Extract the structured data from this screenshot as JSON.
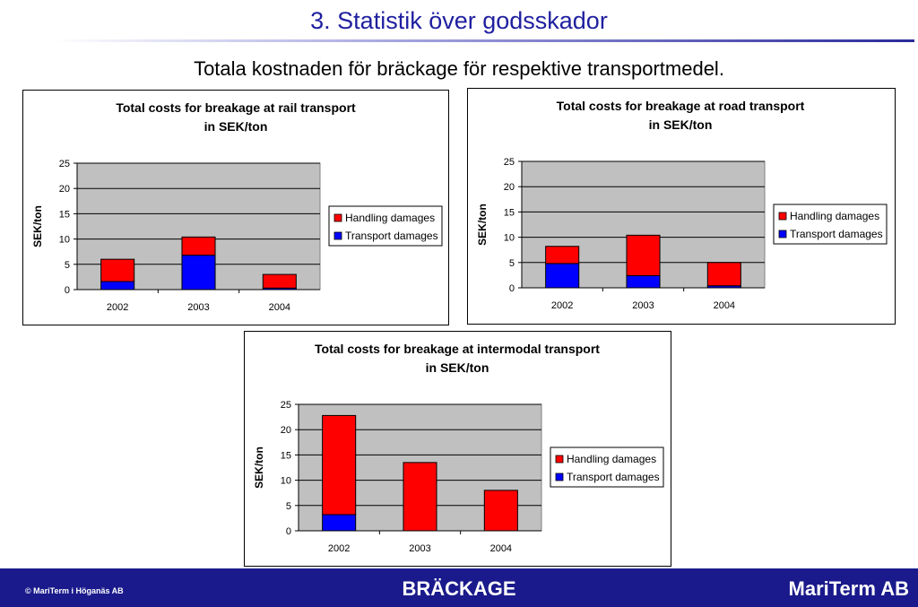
{
  "slide": {
    "title": "3. Statistik över godsskador",
    "subtitle": "Totala kostnaden för bräckage för respektive transportmedel."
  },
  "colors": {
    "handling": "#ff0000",
    "transport": "#0000ff",
    "plot_bg": "#c0c0c0",
    "title_blue": "#1f1fa0",
    "footer_bg": "#1a1a8c"
  },
  "chart_data": [
    {
      "type": "bar",
      "stacked": true,
      "title_lines": [
        "Total costs for breakage at rail transport",
        "in SEK/ton"
      ],
      "xlabel": "",
      "ylabel": "SEK/ton",
      "ylim": [
        0,
        25
      ],
      "yticks": [
        0,
        5,
        10,
        15,
        20,
        25
      ],
      "grid": true,
      "legend_position": "right",
      "categories": [
        "2002",
        "2003",
        "2004"
      ],
      "series": [
        {
          "name": "Transport damages",
          "values": [
            1.6,
            6.8,
            0.3
          ]
        },
        {
          "name": "Handling damages",
          "values": [
            4.4,
            3.6,
            2.7
          ]
        }
      ],
      "legend_order": [
        "Handling damages",
        "Transport damages"
      ]
    },
    {
      "type": "bar",
      "stacked": true,
      "title_lines": [
        "Total costs for breakage at road transport",
        "in SEK/ton"
      ],
      "xlabel": "",
      "ylabel": "SEK/ton",
      "ylim": [
        0,
        25
      ],
      "yticks": [
        0,
        5,
        10,
        15,
        20,
        25
      ],
      "grid": true,
      "legend_position": "right",
      "categories": [
        "2002",
        "2003",
        "2004"
      ],
      "series": [
        {
          "name": "Transport damages",
          "values": [
            4.8,
            2.4,
            0.4
          ]
        },
        {
          "name": "Handling damages",
          "values": [
            3.4,
            8.0,
            4.6
          ]
        }
      ],
      "legend_order": [
        "Handling damages",
        "Transport damages"
      ]
    },
    {
      "type": "bar",
      "stacked": true,
      "title_lines": [
        "Total costs for breakage at intermodal transport",
        "in SEK/ton"
      ],
      "xlabel": "",
      "ylabel": "SEK/ton",
      "ylim": [
        0,
        25
      ],
      "yticks": [
        0,
        5,
        10,
        15,
        20,
        25
      ],
      "grid": true,
      "legend_position": "right",
      "categories": [
        "2002",
        "2003",
        "2004"
      ],
      "series": [
        {
          "name": "Transport damages",
          "values": [
            3.2,
            0,
            0
          ]
        },
        {
          "name": "Handling damages",
          "values": [
            19.6,
            13.5,
            8.0
          ]
        }
      ],
      "legend_order": [
        "Handling damages",
        "Transport damages"
      ]
    }
  ],
  "footer": {
    "copyright": "© MariTerm i Höganäs AB",
    "center": "BRÄCKAGE",
    "brand": "MariTerm AB"
  }
}
